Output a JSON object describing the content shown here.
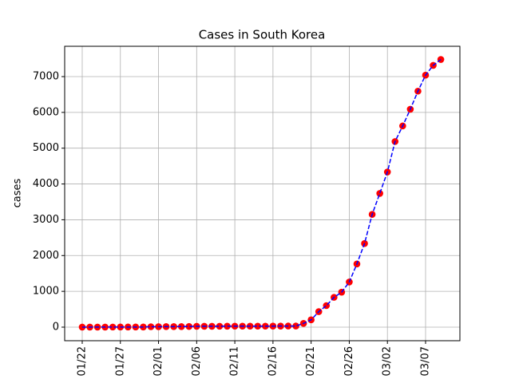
{
  "chart_data": {
    "type": "line",
    "title": "Cases in South Korea",
    "y_label": "cases",
    "categories": [
      "01/22",
      null,
      null,
      null,
      null,
      "01/27",
      null,
      null,
      null,
      null,
      "02/01",
      null,
      null,
      null,
      null,
      "02/06",
      null,
      null,
      null,
      null,
      "02/11",
      null,
      null,
      null,
      null,
      "02/16",
      null,
      null,
      null,
      null,
      "02/21",
      null,
      null,
      null,
      null,
      "02/26",
      null,
      null,
      null,
      null,
      "03/02",
      null,
      null,
      null,
      null,
      "03/07",
      null,
      null
    ],
    "series": [
      {
        "marker_color": "#ff0000",
        "line_color": "#0000ff",
        "line_style": "dashed",
        "values": [
          1,
          1,
          2,
          2,
          3,
          4,
          4,
          4,
          4,
          11,
          12,
          15,
          15,
          16,
          19,
          23,
          24,
          24,
          25,
          27,
          28,
          28,
          28,
          28,
          28,
          29,
          30,
          31,
          31,
          104,
          204,
          433,
          602,
          833,
          977,
          1261,
          1766,
          2337,
          3150,
          3736,
          4335,
          5186,
          5621,
          6088,
          6593,
          7041,
          7314,
          7478
        ]
      }
    ],
    "xlim": [
      -2.3,
      49.5
    ],
    "ylim": [
      -379,
      7847
    ],
    "yticks": [
      0,
      1000,
      2000,
      3000,
      4000,
      5000,
      6000,
      7000
    ],
    "grid": true
  }
}
